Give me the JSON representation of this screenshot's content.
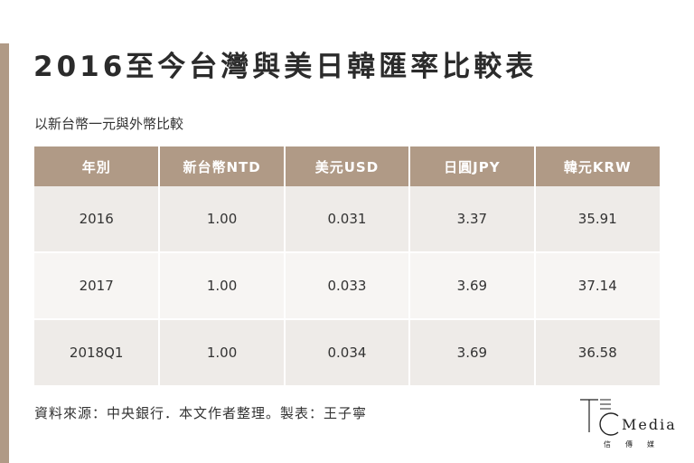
{
  "title": "2016至今台灣與美日韓匯率比較表",
  "subtitle": "以新台幣一元與外幣比較",
  "source": "資料來源：中央銀行．本文作者整理。製表：王子寧",
  "brand": {
    "word": "Media",
    "sub": "信傳媒"
  },
  "colors": {
    "accent": "#b09a86",
    "row_odd": "#eeebe8",
    "row_even": "#f7f5f3",
    "text": "#333333"
  },
  "chart_data": {
    "type": "table",
    "title": "2016至今台灣與美日韓匯率比較表",
    "subtitle": "以新台幣一元與外幣比較",
    "columns": [
      "年別",
      "新台幣NTD",
      "美元USD",
      "日圓JPY",
      "韓元KRW"
    ],
    "rows": [
      [
        "2016",
        "1.00",
        "0.031",
        "3.37",
        "35.91"
      ],
      [
        "2017",
        "1.00",
        "0.033",
        "3.69",
        "37.14"
      ],
      [
        "2018Q1",
        "1.00",
        "0.034",
        "3.69",
        "36.58"
      ]
    ]
  }
}
